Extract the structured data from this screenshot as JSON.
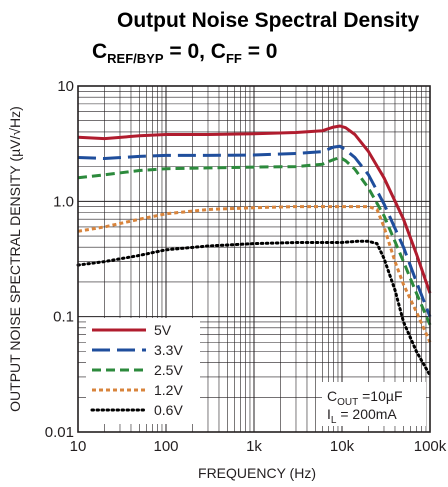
{
  "chart_data": {
    "type": "line",
    "title_parts": {
      "line1": "Output Noise Spectral Density",
      "c1": "C",
      "c1_sub": "REF/BYP",
      "c1_rest": " = 0, ",
      "c2": "C",
      "c2_sub": "FF",
      "c2_rest": " = 0"
    },
    "xlabel": "FREQUENCY (Hz)",
    "ylabel": "OUTPUT NOISE SPECTRAL DENSITY (µV/√Hz)",
    "xscale": "log",
    "yscale": "log",
    "xlim": [
      10,
      100000
    ],
    "ylim": [
      0.01,
      10
    ],
    "xticks": [
      {
        "value": 10,
        "label": "10"
      },
      {
        "value": 100,
        "label": "100"
      },
      {
        "value": 1000,
        "label": "1k"
      },
      {
        "value": 10000,
        "label": "10k"
      },
      {
        "value": 100000,
        "label": "100k"
      }
    ],
    "yticks": [
      {
        "value": 0.01,
        "label": "0.01"
      },
      {
        "value": 0.1,
        "label": "0.1"
      },
      {
        "value": 1,
        "label": "1.0"
      },
      {
        "value": 10,
        "label": "10"
      }
    ],
    "grid": true,
    "legend_position": "bottom-left",
    "annotation": {
      "c": "C",
      "c_sub": "OUT",
      "c_rest": " =10µF",
      "i": "I",
      "i_sub": "L",
      "i_rest": " = 200mA"
    },
    "series": [
      {
        "name": "5V",
        "color": "#b01c2e",
        "dash": "solid",
        "x": [
          10,
          20,
          50,
          100,
          300,
          1000,
          3000,
          6000,
          8000,
          9500,
          11000,
          14000,
          20000,
          30000,
          50000,
          70000,
          100000
        ],
        "y": [
          3.6,
          3.5,
          3.7,
          3.8,
          3.8,
          3.85,
          3.95,
          4.1,
          4.4,
          4.5,
          4.35,
          3.8,
          2.7,
          1.6,
          0.7,
          0.35,
          0.16
        ]
      },
      {
        "name": "3.3V",
        "color": "#1f4e9c",
        "dash": "long",
        "x": [
          10,
          20,
          50,
          100,
          300,
          1000,
          3000,
          6000,
          8000,
          9500,
          11000,
          14000,
          20000,
          30000,
          50000,
          70000,
          100000
        ],
        "y": [
          2.4,
          2.35,
          2.45,
          2.5,
          2.5,
          2.52,
          2.6,
          2.7,
          2.95,
          3.0,
          2.8,
          2.4,
          1.7,
          0.95,
          0.4,
          0.2,
          0.1
        ]
      },
      {
        "name": "2.5V",
        "color": "#2c8a3c",
        "dash": "medium",
        "x": [
          10,
          20,
          50,
          100,
          300,
          1000,
          3000,
          6000,
          8000,
          9500,
          11000,
          14000,
          20000,
          30000,
          50000,
          70000,
          100000
        ],
        "y": [
          1.6,
          1.7,
          1.85,
          1.92,
          1.95,
          1.98,
          2.0,
          2.1,
          2.3,
          2.4,
          2.25,
          1.9,
          1.3,
          0.75,
          0.3,
          0.16,
          0.085
        ]
      },
      {
        "name": "1.2V",
        "color": "#d8843c",
        "dash": "short",
        "x": [
          10,
          20,
          50,
          100,
          300,
          1000,
          3000,
          6000,
          10000,
          15000,
          20000,
          25000,
          30000,
          40000,
          50000,
          70000,
          100000
        ],
        "y": [
          0.55,
          0.6,
          0.7,
          0.78,
          0.85,
          0.88,
          0.9,
          0.9,
          0.9,
          0.9,
          0.9,
          0.85,
          0.6,
          0.3,
          0.19,
          0.11,
          0.06
        ]
      },
      {
        "name": "0.6V",
        "color": "#000000",
        "dash": "dot",
        "x": [
          10,
          20,
          50,
          100,
          300,
          1000,
          3000,
          6000,
          10000,
          15000,
          20000,
          25000,
          30000,
          40000,
          50000,
          70000,
          100000
        ],
        "y": [
          0.28,
          0.3,
          0.34,
          0.38,
          0.41,
          0.43,
          0.44,
          0.44,
          0.44,
          0.45,
          0.45,
          0.43,
          0.32,
          0.17,
          0.09,
          0.05,
          0.031
        ]
      }
    ]
  }
}
